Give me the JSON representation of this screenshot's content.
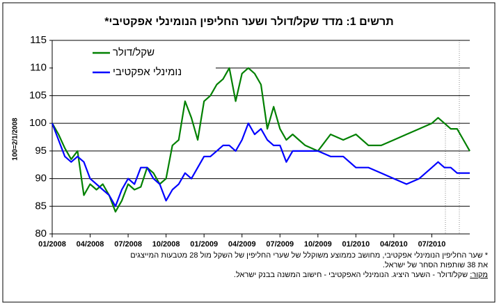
{
  "chart_data": {
    "type": "line",
    "title": "תרשים 1: מדד שקל/דולר ושער החליפין הנומינלי אפקטיבי*",
    "y_label": "100=2/1/2008",
    "x": [
      0,
      0.5,
      1,
      1.5,
      2,
      2.5,
      3,
      3.5,
      4,
      4.5,
      5,
      5.5,
      6,
      6.5,
      7,
      7.5,
      8,
      8.5,
      9,
      9.5,
      10,
      10.5,
      11,
      11.5,
      12,
      12.5,
      13,
      13.5,
      14,
      14.5,
      15,
      15.5,
      16,
      16.5,
      17,
      17.5,
      18,
      18.5,
      19,
      19.5,
      20,
      21,
      22,
      23,
      24,
      25,
      26,
      27,
      28,
      29,
      30,
      30.5,
      31,
      31.5,
      32,
      32.5,
      33
    ],
    "series": [
      {
        "name": "שקל/דולר",
        "color": "#008000",
        "values": [
          100,
          98,
          95.5,
          93.5,
          95,
          87,
          89,
          88,
          89,
          87,
          84,
          86,
          89,
          88,
          88.5,
          92,
          91,
          89,
          90,
          96,
          97,
          104,
          101,
          97,
          104,
          105,
          107,
          108,
          110,
          104,
          109,
          110,
          109,
          107,
          99,
          103,
          99,
          97,
          98,
          97,
          96,
          95,
          98,
          97,
          98,
          96,
          96,
          97,
          98,
          99,
          100,
          101,
          100,
          99,
          99,
          97,
          95
        ]
      },
      {
        "name": "נומינלי אפקטיבי",
        "color": "#0000ff",
        "values": [
          100,
          97,
          94,
          93,
          94,
          93,
          90,
          89,
          88,
          87,
          85,
          88,
          90,
          89,
          92,
          92,
          90,
          89,
          86,
          88,
          89,
          91,
          90,
          92,
          94,
          94,
          95,
          96,
          96,
          95,
          97,
          100,
          98,
          99,
          97,
          96,
          96,
          93,
          95,
          95,
          95,
          95,
          94,
          94,
          92,
          92,
          91,
          90,
          89,
          90,
          92,
          93,
          92,
          92,
          91,
          91,
          91
        ]
      }
    ],
    "xlim": [
      0,
      33
    ],
    "xticks": [
      {
        "value": 0,
        "label": "01/2008"
      },
      {
        "value": 3,
        "label": "04/2008"
      },
      {
        "value": 6,
        "label": "07/2008"
      },
      {
        "value": 9,
        "label": "10/2008"
      },
      {
        "value": 12,
        "label": "01/2009"
      },
      {
        "value": 15,
        "label": "04/2009"
      },
      {
        "value": 18,
        "label": "07/2009"
      },
      {
        "value": 21,
        "label": "10/2009"
      },
      {
        "value": 24,
        "label": "01/2010"
      },
      {
        "value": 27,
        "label": "04/2010"
      },
      {
        "value": 30,
        "label": "07/2010"
      }
    ],
    "ylim": [
      80,
      115
    ],
    "yticks": [
      80,
      85,
      90,
      95,
      100,
      105,
      110,
      115
    ],
    "grid": true,
    "legend": "upper left",
    "notes": [
      "* שער החליפין הנומינלי אפקטיבי, מחושב כממוצע משוקלל של שערי החליפין של השקל מול 28 מטבעות המייצגים",
      "את 38 שותפות הסחר של ישראל."
    ],
    "source_label": "מקור:",
    "source": " שקל/דולר - השער היציג. הנומינלי האפקטיבי - חישוב המשנה בבנק ישראל."
  }
}
